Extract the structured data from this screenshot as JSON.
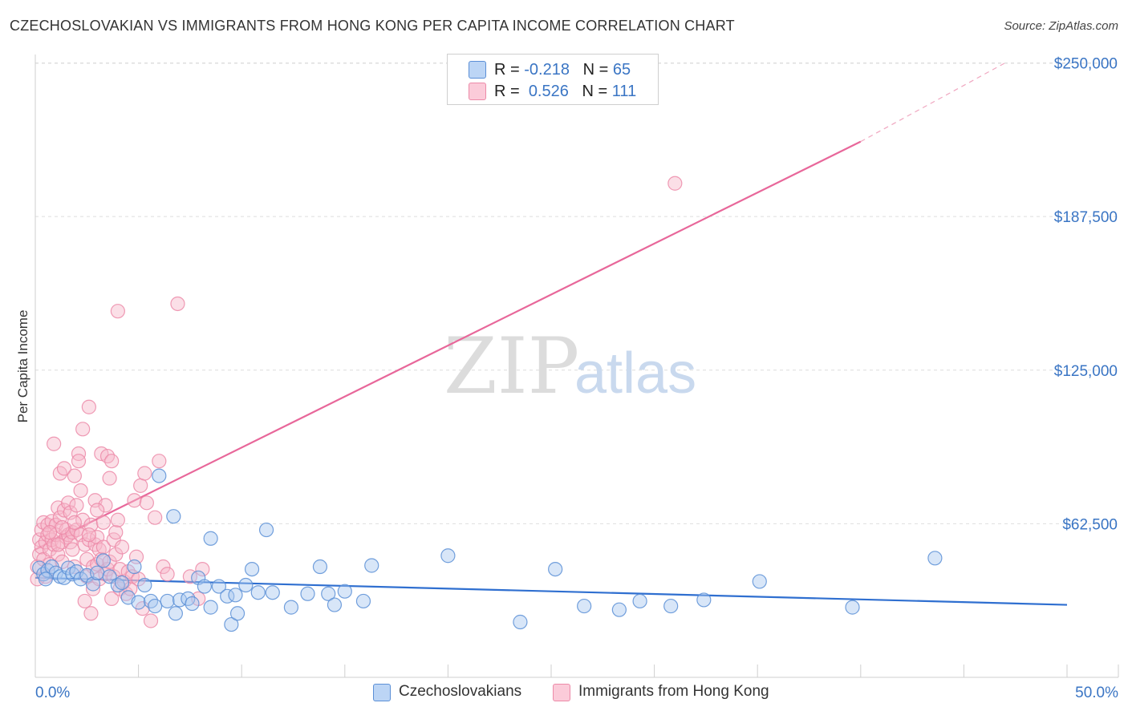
{
  "title": "CZECHOSLOVAKIAN VS IMMIGRANTS FROM HONG KONG PER CAPITA INCOME CORRELATION CHART",
  "source": "Source: ZipAtlas.com",
  "watermark": {
    "zip": "ZIP",
    "atlas": "atlas"
  },
  "legend": {
    "rows": [
      {
        "r_label": "R = ",
        "r_value": "-0.218",
        "n_label": "N = ",
        "n_value": "65"
      },
      {
        "r_label": "R = ",
        "r_value": "0.526",
        "n_label": "N = ",
        "n_value": "111"
      }
    ]
  },
  "colors": {
    "blue_fill": "#a9c8f0",
    "blue_stroke": "#5b8fd6",
    "blue_line": "#2f6fd0",
    "pink_fill": "#f6b7c9",
    "pink_stroke": "#ec8aa8",
    "pink_line": "#e8679a",
    "grid": "#dedede",
    "axis_text": "#3a75c4"
  },
  "chart_data": {
    "type": "scatter",
    "title": "CZECHOSLOVAKIAN VS IMMIGRANTS FROM HONG KONG PER CAPITA INCOME CORRELATION CHART",
    "xlabel": "",
    "ylabel": "Per Capita Income",
    "xlim": [
      0,
      50
    ],
    "ylim": [
      0,
      262500
    ],
    "x_tick_labels": [
      "0.0%",
      "50.0%"
    ],
    "y_ticks": [
      62500,
      125000,
      187500,
      250000
    ],
    "y_tick_labels": [
      "$62,500",
      "$125,000",
      "$187,500",
      "$250,000"
    ],
    "series": [
      {
        "name": "Czechoslovakians",
        "color": "blue",
        "R": -0.218,
        "N": 65,
        "trend": {
          "x0": 0,
          "y0": 40500,
          "x1": 50,
          "y1": 29500
        },
        "points": [
          [
            0.2,
            44500
          ],
          [
            0.4,
            42000
          ],
          [
            0.6,
            43500
          ],
          [
            0.8,
            45000
          ],
          [
            1.0,
            42500
          ],
          [
            1.2,
            41000
          ],
          [
            1.4,
            40500
          ],
          [
            1.6,
            44500
          ],
          [
            1.8,
            42000
          ],
          [
            2.0,
            43000
          ],
          [
            2.2,
            40000
          ],
          [
            2.5,
            41500
          ],
          [
            2.8,
            38000
          ],
          [
            3.0,
            42500
          ],
          [
            3.3,
            47500
          ],
          [
            3.6,
            41000
          ],
          [
            4.0,
            37500
          ],
          [
            4.2,
            38500
          ],
          [
            4.5,
            32500
          ],
          [
            4.8,
            45000
          ],
          [
            5.0,
            30500
          ],
          [
            5.3,
            37500
          ],
          [
            5.6,
            31000
          ],
          [
            5.8,
            29000
          ],
          [
            6.0,
            82000
          ],
          [
            6.4,
            31000
          ],
          [
            6.7,
            65500
          ],
          [
            6.8,
            26000
          ],
          [
            7.0,
            31500
          ],
          [
            7.4,
            32000
          ],
          [
            7.6,
            30000
          ],
          [
            7.9,
            40500
          ],
          [
            8.2,
            37000
          ],
          [
            8.5,
            28500
          ],
          [
            8.5,
            56500
          ],
          [
            8.9,
            37000
          ],
          [
            9.3,
            33000
          ],
          [
            9.5,
            21500
          ],
          [
            9.7,
            33500
          ],
          [
            9.8,
            26000
          ],
          [
            10.2,
            37500
          ],
          [
            10.5,
            44000
          ],
          [
            10.8,
            34500
          ],
          [
            11.2,
            60000
          ],
          [
            11.5,
            34500
          ],
          [
            12.4,
            28500
          ],
          [
            13.2,
            34000
          ],
          [
            13.8,
            45000
          ],
          [
            14.2,
            34000
          ],
          [
            14.5,
            29500
          ],
          [
            15.0,
            35000
          ],
          [
            15.9,
            31000
          ],
          [
            16.3,
            45500
          ],
          [
            20.0,
            49500
          ],
          [
            23.5,
            22500
          ],
          [
            25.2,
            44000
          ],
          [
            26.6,
            29000
          ],
          [
            28.3,
            27500
          ],
          [
            29.3,
            31000
          ],
          [
            30.8,
            29000
          ],
          [
            32.4,
            31500
          ],
          [
            35.1,
            39000
          ],
          [
            39.6,
            28500
          ],
          [
            43.6,
            48500
          ],
          [
            0.5,
            40000
          ]
        ]
      },
      {
        "name": "Immigrants from Hong Kong",
        "color": "pink",
        "R": 0.526,
        "N": 111,
        "trend": {
          "x0": 0,
          "y0": 52000,
          "x1": 40,
          "y1": 218000,
          "dash_x1": 47,
          "dash_y1": 250000
        },
        "points": [
          [
            0.1,
            40000
          ],
          [
            0.1,
            45000
          ],
          [
            0.2,
            50000
          ],
          [
            0.2,
            56000
          ],
          [
            0.3,
            53000
          ],
          [
            0.3,
            60000
          ],
          [
            0.4,
            48000
          ],
          [
            0.4,
            63000
          ],
          [
            0.5,
            55000
          ],
          [
            0.5,
            41000
          ],
          [
            0.6,
            58000
          ],
          [
            0.6,
            62000
          ],
          [
            0.7,
            52000
          ],
          [
            0.7,
            46000
          ],
          [
            0.8,
            63500
          ],
          [
            0.8,
            56000
          ],
          [
            0.9,
            95000
          ],
          [
            0.9,
            54000
          ],
          [
            1.0,
            62000
          ],
          [
            1.0,
            58000
          ],
          [
            1.1,
            69000
          ],
          [
            1.1,
            50000
          ],
          [
            1.2,
            83000
          ],
          [
            1.2,
            65000
          ],
          [
            1.3,
            55000
          ],
          [
            1.3,
            47000
          ],
          [
            1.4,
            85000
          ],
          [
            1.4,
            68000
          ],
          [
            1.5,
            60000
          ],
          [
            1.5,
            57000
          ],
          [
            1.6,
            71000
          ],
          [
            1.6,
            58000
          ],
          [
            1.7,
            67000
          ],
          [
            1.7,
            55000
          ],
          [
            1.8,
            59000
          ],
          [
            1.8,
            52000
          ],
          [
            1.9,
            82000
          ],
          [
            1.9,
            45000
          ],
          [
            2.0,
            70000
          ],
          [
            2.0,
            60000
          ],
          [
            2.1,
            91000
          ],
          [
            2.1,
            88000
          ],
          [
            2.2,
            76000
          ],
          [
            2.2,
            58000
          ],
          [
            2.3,
            101000
          ],
          [
            2.3,
            64000
          ],
          [
            2.4,
            54000
          ],
          [
            2.4,
            31000
          ],
          [
            2.5,
            48000
          ],
          [
            2.5,
            41000
          ],
          [
            2.6,
            110000
          ],
          [
            2.6,
            56000
          ],
          [
            2.7,
            26000
          ],
          [
            2.7,
            62000
          ],
          [
            2.8,
            45000
          ],
          [
            2.8,
            36000
          ],
          [
            2.9,
            72000
          ],
          [
            2.9,
            54000
          ],
          [
            3.0,
            57000
          ],
          [
            3.0,
            46000
          ],
          [
            3.1,
            52000
          ],
          [
            3.1,
            40000
          ],
          [
            3.2,
            48000
          ],
          [
            3.2,
            91000
          ],
          [
            3.3,
            63000
          ],
          [
            3.3,
            53000
          ],
          [
            3.4,
            70000
          ],
          [
            3.4,
            42000
          ],
          [
            3.5,
            44000
          ],
          [
            3.5,
            90000
          ],
          [
            3.6,
            81000
          ],
          [
            3.6,
            47000
          ],
          [
            3.7,
            88000
          ],
          [
            3.7,
            32000
          ],
          [
            3.8,
            56000
          ],
          [
            3.8,
            41000
          ],
          [
            3.9,
            50000
          ],
          [
            3.9,
            59000
          ],
          [
            4.0,
            149000
          ],
          [
            4.0,
            64000
          ],
          [
            4.1,
            36000
          ],
          [
            4.1,
            44000
          ],
          [
            4.2,
            53000
          ],
          [
            4.3,
            39000
          ],
          [
            4.4,
            34000
          ],
          [
            4.5,
            43000
          ],
          [
            4.6,
            36000
          ],
          [
            4.7,
            41000
          ],
          [
            4.8,
            72000
          ],
          [
            4.9,
            49000
          ],
          [
            5.0,
            40000
          ],
          [
            5.1,
            78000
          ],
          [
            5.2,
            28000
          ],
          [
            5.3,
            83000
          ],
          [
            5.4,
            71000
          ],
          [
            5.6,
            23000
          ],
          [
            5.8,
            65000
          ],
          [
            6.0,
            88000
          ],
          [
            6.2,
            45000
          ],
          [
            6.4,
            42000
          ],
          [
            6.9,
            152000
          ],
          [
            7.5,
            41000
          ],
          [
            7.9,
            32000
          ],
          [
            8.1,
            44000
          ],
          [
            31.0,
            201000
          ],
          [
            1.9,
            63000
          ],
          [
            2.6,
            58000
          ],
          [
            3.0,
            68000
          ],
          [
            1.3,
            61000
          ],
          [
            0.7,
            59000
          ],
          [
            1.1,
            54000
          ]
        ]
      }
    ]
  },
  "bottom_legend": [
    {
      "label": "Czechoslovakians"
    },
    {
      "label": "Immigrants from Hong Kong"
    }
  ]
}
